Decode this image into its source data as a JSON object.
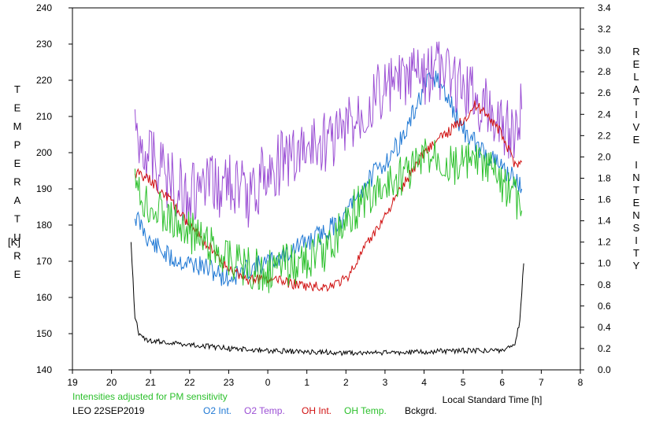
{
  "chart_data": {
    "type": "line",
    "left_axis_label": "TEMPERATURE",
    "left_axis_unit": "[K]",
    "right_axis_label": "RELATIVE INTENSITY",
    "xlabel": "Local Standard Time [h]",
    "note": "Intensities adjusted for PM sensitivity",
    "station": "LEO 22SEP2019",
    "xlim": [
      19,
      8
    ],
    "x_ticks": [
      "19",
      "20",
      "21",
      "22",
      "23",
      "0",
      "1",
      "2",
      "3",
      "4",
      "5",
      "6",
      "7",
      "8"
    ],
    "y_left_lim": [
      140,
      240
    ],
    "y_left_ticks": [
      "140",
      "150",
      "160",
      "170",
      "180",
      "190",
      "200",
      "210",
      "220",
      "230",
      "240"
    ],
    "y_right_lim": [
      0.0,
      3.4
    ],
    "y_right_ticks": [
      "0.0",
      "0.2",
      "0.4",
      "0.6",
      "0.8",
      "1.0",
      "1.2",
      "1.4",
      "1.6",
      "1.8",
      "2.0",
      "2.2",
      "2.4",
      "2.6",
      "2.8",
      "3.0",
      "3.2",
      "3.4"
    ],
    "series": [
      {
        "name": "O2 Int.",
        "axis": "right",
        "color": "#1f78d4",
        "x": [
          20.6,
          21.0,
          21.5,
          22.0,
          22.5,
          23.0,
          23.5,
          0.0,
          0.5,
          1.0,
          1.5,
          2.0,
          2.5,
          3.0,
          3.5,
          4.0,
          4.3,
          4.6,
          5.0,
          5.5,
          6.0,
          6.3,
          6.5
        ],
        "y": [
          1.45,
          1.2,
          1.05,
          1.0,
          0.95,
          0.85,
          0.95,
          1.0,
          1.1,
          1.2,
          1.3,
          1.45,
          1.75,
          1.95,
          2.2,
          2.65,
          2.75,
          2.55,
          2.25,
          2.05,
          1.9,
          1.8,
          1.7
        ]
      },
      {
        "name": "O2 Temp.",
        "axis": "left",
        "color": "#9b4fd4",
        "x": [
          20.6,
          21.0,
          21.5,
          22.0,
          22.5,
          23.0,
          23.5,
          0.0,
          0.5,
          1.0,
          1.5,
          2.0,
          2.5,
          3.0,
          3.5,
          4.0,
          4.3,
          4.6,
          5.0,
          5.5,
          6.0,
          6.3,
          6.5
        ],
        "y": [
          205,
          200,
          192,
          188,
          190,
          192,
          188,
          195,
          198,
          201,
          203,
          206,
          213,
          217,
          219,
          222,
          223,
          221,
          218,
          214,
          208,
          205,
          212
        ]
      },
      {
        "name": "OH Int.",
        "axis": "right",
        "color": "#d01010",
        "x": [
          20.6,
          21.0,
          21.5,
          22.0,
          22.5,
          23.0,
          23.5,
          0.0,
          0.5,
          1.0,
          1.5,
          2.0,
          2.5,
          3.0,
          3.5,
          4.0,
          4.5,
          5.0,
          5.3,
          5.6,
          6.0,
          6.3,
          6.5
        ],
        "y": [
          1.85,
          1.78,
          1.6,
          1.35,
          1.15,
          0.95,
          0.85,
          0.85,
          0.82,
          0.78,
          0.78,
          0.85,
          1.15,
          1.45,
          1.75,
          2.05,
          2.2,
          2.35,
          2.48,
          2.42,
          2.2,
          1.95,
          1.95
        ]
      },
      {
        "name": "OH Temp.",
        "axis": "left",
        "color": "#2cc02c",
        "x": [
          20.6,
          21.0,
          21.5,
          22.0,
          22.5,
          23.0,
          23.5,
          0.0,
          0.5,
          1.0,
          1.5,
          2.0,
          2.5,
          3.0,
          3.5,
          4.0,
          4.3,
          4.6,
          5.0,
          5.5,
          6.0,
          6.3,
          6.5
        ],
        "y": [
          190,
          186,
          182,
          178,
          175,
          171,
          168,
          167,
          169,
          170,
          173,
          182,
          187,
          190,
          194,
          198,
          200,
          197,
          197,
          196,
          192,
          188,
          184
        ]
      },
      {
        "name": "Bckgrd.",
        "axis": "right",
        "color": "#000000",
        "x": [
          20.5,
          20.6,
          20.7,
          20.8,
          21.0,
          22.0,
          23.0,
          0.0,
          1.0,
          2.0,
          3.0,
          4.0,
          5.0,
          6.0,
          6.3,
          6.45,
          6.55
        ],
        "y": [
          1.2,
          0.5,
          0.35,
          0.3,
          0.27,
          0.24,
          0.2,
          0.18,
          0.17,
          0.16,
          0.16,
          0.17,
          0.18,
          0.18,
          0.22,
          0.45,
          1.0
        ]
      }
    ]
  }
}
